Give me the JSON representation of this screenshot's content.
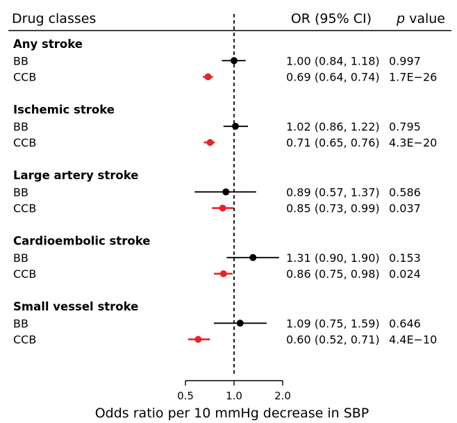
{
  "chart_data": {
    "type": "forest",
    "headers": {
      "label": "Drug classes",
      "or": "OR (95% CI)",
      "p_italic": "p",
      "p_rest": " value"
    },
    "xlabel": "Odds ratio per 10 mmHg decrease in SBP",
    "xscale": "log",
    "xlim": [
      0.5,
      2.0
    ],
    "xticks": [
      0.5,
      1.0,
      2.0
    ],
    "xtick_labels": [
      "0.5",
      "1.0",
      "2.0"
    ],
    "reference_line": 1.0,
    "groups": [
      {
        "name": "Any stroke",
        "rows": [
          {
            "label": "BB",
            "or": 1.0,
            "lo": 0.84,
            "hi": 1.18,
            "or_text": "1.00 (0.84, 1.18)",
            "p": "0.997",
            "color": "#000000"
          },
          {
            "label": "CCB",
            "or": 0.69,
            "lo": 0.64,
            "hi": 0.74,
            "or_text": "0.69 (0.64, 0.74)",
            "p": "1.7E−26",
            "color": "#e8232a"
          }
        ]
      },
      {
        "name": "Ischemic stroke",
        "rows": [
          {
            "label": "BB",
            "or": 1.02,
            "lo": 0.86,
            "hi": 1.22,
            "or_text": "1.02 (0.86, 1.22)",
            "p": "0.795",
            "color": "#000000"
          },
          {
            "label": "CCB",
            "or": 0.71,
            "lo": 0.65,
            "hi": 0.76,
            "or_text": "0.71 (0.65, 0.76)",
            "p": "4.3E−20",
            "color": "#e8232a"
          }
        ]
      },
      {
        "name": "Large artery stroke",
        "rows": [
          {
            "label": "BB",
            "or": 0.89,
            "lo": 0.57,
            "hi": 1.37,
            "or_text": "0.89 (0.57, 1.37)",
            "p": "0.586",
            "color": "#000000"
          },
          {
            "label": "CCB",
            "or": 0.85,
            "lo": 0.73,
            "hi": 0.99,
            "or_text": "0.85 (0.73, 0.99)",
            "p": "0.037",
            "color": "#e8232a"
          }
        ]
      },
      {
        "name": "Cardioembolic stroke",
        "rows": [
          {
            "label": "BB",
            "or": 1.31,
            "lo": 0.9,
            "hi": 1.9,
            "or_text": "1.31 (0.90, 1.90)",
            "p": "0.153",
            "color": "#000000"
          },
          {
            "label": "CCB",
            "or": 0.86,
            "lo": 0.75,
            "hi": 0.98,
            "or_text": "0.86 (0.75, 0.98)",
            "p": "0.024",
            "color": "#e8232a"
          }
        ]
      },
      {
        "name": "Small vessel stroke",
        "rows": [
          {
            "label": "BB",
            "or": 1.09,
            "lo": 0.75,
            "hi": 1.59,
            "or_text": "1.09 (0.75, 1.59)",
            "p": "0.646",
            "color": "#000000"
          },
          {
            "label": "CCB",
            "or": 0.6,
            "lo": 0.52,
            "hi": 0.71,
            "or_text": "0.60 (0.52, 0.71)",
            "p": "4.4E−10",
            "color": "#e8232a"
          }
        ]
      }
    ]
  }
}
